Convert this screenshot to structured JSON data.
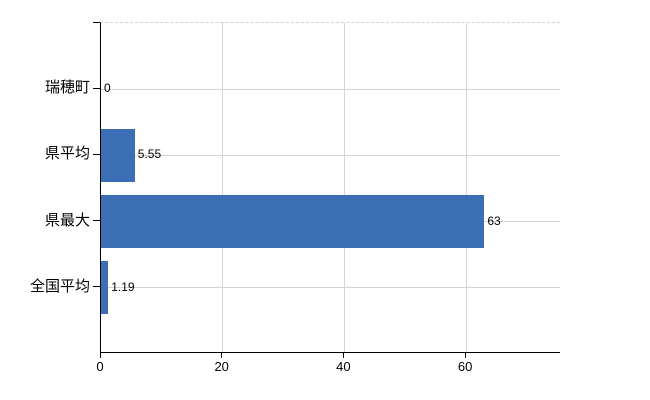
{
  "chart_data": {
    "type": "bar",
    "orientation": "horizontal",
    "title": "",
    "xlabel": "",
    "ylabel": "",
    "categories": [
      "瑞穂町",
      "県平均",
      "県最大",
      "全国平均"
    ],
    "values": [
      0,
      5.55,
      63,
      1.19
    ],
    "value_labels": [
      "0",
      "5.55",
      "63",
      "1.19"
    ],
    "xticks": [
      0,
      20,
      40,
      60
    ],
    "xtick_labels": [
      "0",
      "20",
      "40",
      "60"
    ],
    "xlim": [
      0,
      75.6
    ],
    "grid": true,
    "legend_position": "none",
    "colors": {
      "bar": "#3c6eb5",
      "axis": "#000000",
      "text": "#000000",
      "h_gridline": "#ccd8cf",
      "v_gridline": "#d7d2d7",
      "top_border": "#d9cdd2",
      "background": "#ffffff"
    }
  }
}
